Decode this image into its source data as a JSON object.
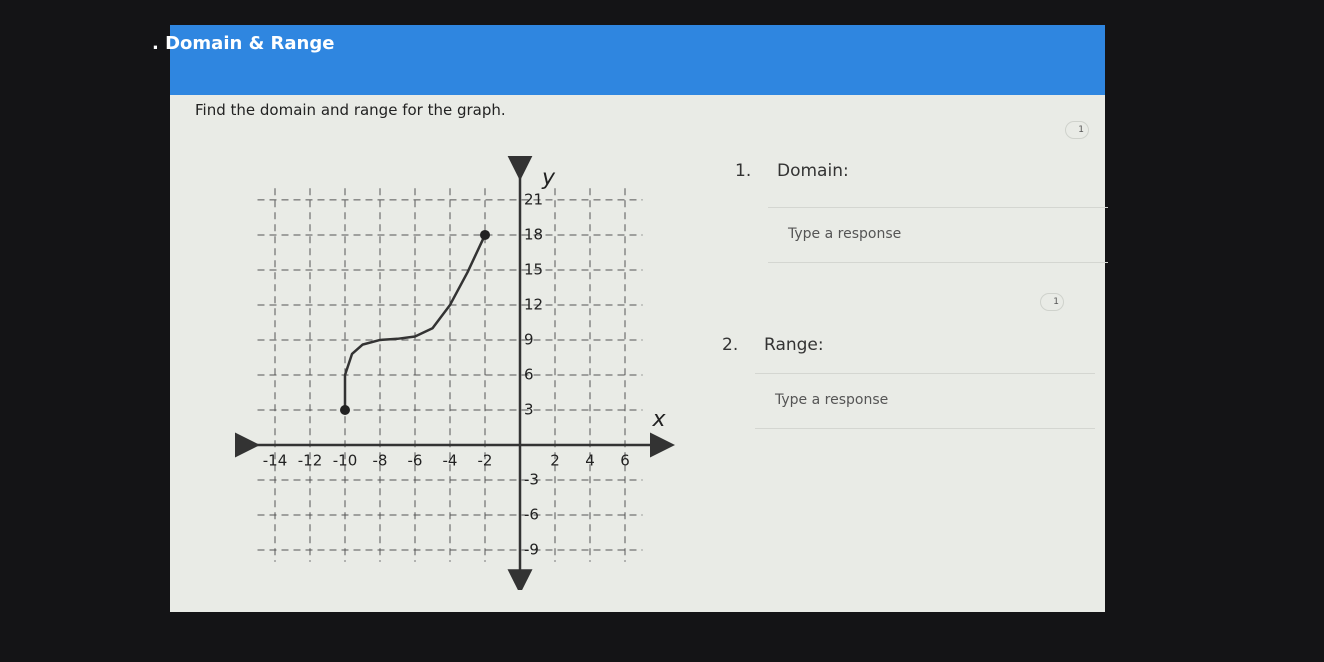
{
  "header": {
    "title": ". Domain & Range"
  },
  "prompt": "Find the domain and range for the graph.",
  "graph": {
    "xlabel": "x",
    "ylabel": "y",
    "xlim": [
      -15,
      7
    ],
    "ylim": [
      -10,
      22
    ],
    "xticks": [
      -14,
      -12,
      -10,
      -8,
      -6,
      -4,
      -2,
      2,
      4,
      6
    ],
    "yticks": [
      -9,
      -6,
      -3,
      3,
      6,
      9,
      12,
      15,
      18,
      21
    ],
    "curve": {
      "x": [
        -10,
        -10,
        -9.6,
        -9,
        -8,
        -7,
        -6,
        -5,
        -4,
        -3,
        -2
      ],
      "y": [
        3,
        6,
        7.8,
        8.6,
        9,
        9.1,
        9.3,
        10,
        12,
        14.8,
        18
      ]
    }
  },
  "questions": [
    {
      "number": "1.",
      "label": "Domain:",
      "placeholder": "Type a response",
      "points": "1"
    },
    {
      "number": "2.",
      "label": "Range:",
      "placeholder": "Type a response",
      "points": "1"
    }
  ]
}
